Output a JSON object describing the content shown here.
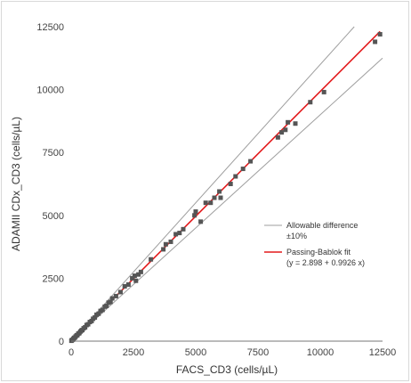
{
  "chart_data": {
    "type": "scatter",
    "title": "",
    "xlabel": "FACS_CD3 (cells/µL)",
    "ylabel": "ADAMII CDx_CD3 (cells/µL)",
    "xlim": [
      0,
      12500
    ],
    "ylim": [
      0,
      12500
    ],
    "xticks": [
      "0",
      "2500",
      "5000",
      "7500",
      "10000",
      "12500"
    ],
    "yticks": [
      "0",
      "2500",
      "5000",
      "7500",
      "10000",
      "12500"
    ],
    "grid": false,
    "legend_position": "right-center",
    "legend": [
      {
        "label": "Allowable difference",
        "sublabel": "±10%",
        "color": "#9e9e9e"
      },
      {
        "label": "Passing-Bablok fit",
        "sublabel": "(y = 2.898 + 0.9926 x)",
        "color": "#e31a1c"
      }
    ],
    "fit": {
      "intercept": 2.898,
      "slope": 0.9926,
      "color": "#e31a1c"
    },
    "allowable_difference": {
      "percent": 10,
      "color": "#9e9e9e"
    },
    "marker_color": "#555555",
    "points": [
      [
        10,
        15
      ],
      [
        30,
        40
      ],
      [
        60,
        55
      ],
      [
        90,
        95
      ],
      [
        120,
        130
      ],
      [
        150,
        140
      ],
      [
        180,
        185
      ],
      [
        220,
        230
      ],
      [
        250,
        240
      ],
      [
        290,
        300
      ],
      [
        330,
        320
      ],
      [
        370,
        380
      ],
      [
        410,
        420
      ],
      [
        450,
        440
      ],
      [
        500,
        510
      ],
      [
        560,
        550
      ],
      [
        620,
        640
      ],
      [
        680,
        670
      ],
      [
        750,
        760
      ],
      [
        820,
        800
      ],
      [
        880,
        890
      ],
      [
        950,
        940
      ],
      [
        1020,
        1050
      ],
      [
        1100,
        1090
      ],
      [
        1180,
        1200
      ],
      [
        1260,
        1240
      ],
      [
        1350,
        1370
      ],
      [
        1420,
        1400
      ],
      [
        1500,
        1530
      ],
      [
        1580,
        1560
      ],
      [
        1650,
        1700
      ],
      [
        1800,
        1790
      ],
      [
        1980,
        1950
      ],
      [
        2150,
        2180
      ],
      [
        2300,
        2250
      ],
      [
        2450,
        2500
      ],
      [
        2550,
        2600
      ],
      [
        2600,
        2400
      ],
      [
        2700,
        2650
      ],
      [
        2800,
        2750
      ],
      [
        3200,
        3250
      ],
      [
        3700,
        3650
      ],
      [
        3800,
        3850
      ],
      [
        4000,
        3950
      ],
      [
        4200,
        4250
      ],
      [
        4350,
        4300
      ],
      [
        4500,
        4450
      ],
      [
        4950,
        5000
      ],
      [
        5000,
        5150
      ],
      [
        5200,
        4750
      ],
      [
        5400,
        5500
      ],
      [
        5600,
        5500
      ],
      [
        5750,
        5700
      ],
      [
        5950,
        5950
      ],
      [
        6000,
        5700
      ],
      [
        6400,
        6250
      ],
      [
        6600,
        6550
      ],
      [
        6900,
        6850
      ],
      [
        7200,
        7150
      ],
      [
        8300,
        8100
      ],
      [
        8450,
        8300
      ],
      [
        8600,
        8400
      ],
      [
        8700,
        8700
      ],
      [
        9000,
        8650
      ],
      [
        9600,
        9500
      ],
      [
        10150,
        9900
      ],
      [
        12200,
        11900
      ],
      [
        12400,
        12200
      ]
    ]
  }
}
